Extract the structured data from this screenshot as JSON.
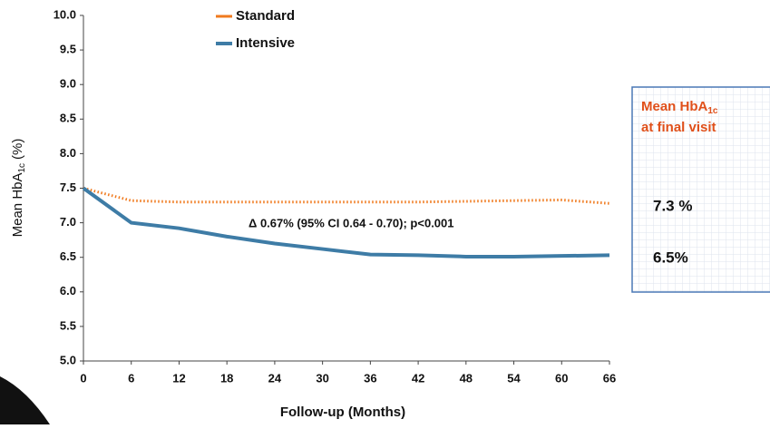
{
  "chart_data": {
    "type": "line",
    "x_label": "Follow-up (Months)",
    "y_label_parts": [
      "Mean HbA",
      "1c",
      "(%)"
    ],
    "x": [
      0,
      6,
      12,
      18,
      24,
      30,
      36,
      42,
      48,
      54,
      60,
      66
    ],
    "series": [
      {
        "name": "Standard",
        "color": "#f07a1e",
        "style": "dotted",
        "values": [
          7.5,
          7.32,
          7.3,
          7.3,
          7.3,
          7.3,
          7.3,
          7.3,
          7.31,
          7.32,
          7.33,
          7.28
        ]
      },
      {
        "name": "Intensive",
        "color": "#3e7ca6",
        "style": "solid",
        "values": [
          7.5,
          7.0,
          6.92,
          6.8,
          6.7,
          6.62,
          6.54,
          6.53,
          6.51,
          6.51,
          6.52,
          6.53
        ]
      }
    ],
    "xlim": [
      0,
      66
    ],
    "xticks": [
      0,
      6,
      12,
      18,
      24,
      30,
      36,
      42,
      48,
      54,
      60,
      66
    ],
    "ylim": [
      5,
      10
    ],
    "yticks": [
      {
        "value": 5,
        "label": "5.0"
      },
      5.5,
      {
        "value": 6,
        "label": "6.0"
      },
      6.5,
      {
        "value": 7,
        "label": "7.0"
      },
      7.5,
      {
        "value": 8,
        "label": "8.0"
      },
      8.5,
      {
        "value": 9,
        "label": "9.0"
      },
      9.5,
      {
        "value": 10,
        "label": "10.0"
      }
    ],
    "annotation": "Δ  0.67%  (95% CI 0.64 - 0.70); p<0.001",
    "box": {
      "title_parts": [
        "Mean HbA",
        "1c"
      ],
      "title_line2": "at final visit",
      "values": [
        "7.3 %",
        "6.5%"
      ]
    }
  }
}
